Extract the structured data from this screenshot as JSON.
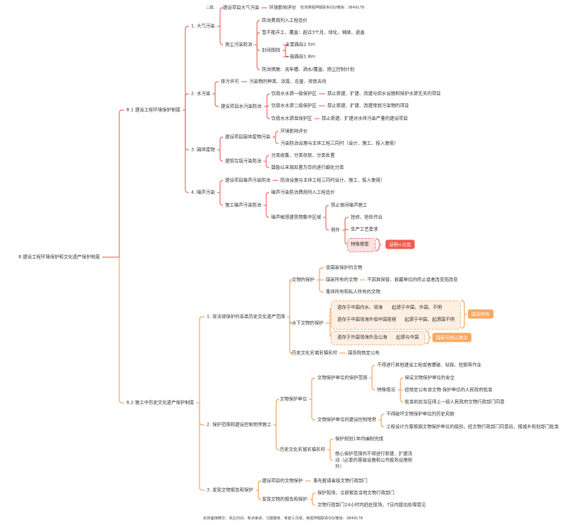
{
  "header": {
    "left": "二建、",
    "right": "检测课程押题联系QQ/微信：3849178"
  },
  "footer": "名师面授精华、央企内训、考点串讲、习题模考、考前三页纸、绝密押题联系QQ/微信：3849178",
  "colors": {
    "env_branch": "#f26b63",
    "heritage_branch": "#f7a35c",
    "badge_red": "#f25b50",
    "badge_orange": "#f7a860"
  },
  "badges": {
    "special_need": "证明+公告",
    "state_owned": "国家所有",
    "identifiable_owner": "国家可辨认物主"
  },
  "map": {
    "root": {
      "text": "8 建设工程环境保护和文化遗产保护制度",
      "children": [
        {
          "text": "8.1 建设工程环境保护制度",
          "children": [
            {
              "text": "1. 大气污染",
              "children": [
                {
                  "text": "建设项目大气污染",
                  "children": [
                    {
                      "text": "环境影响评价"
                    }
                  ]
                },
                {
                  "text": "扬尘污染防治",
                  "children": [
                    {
                      "text": "防治费用列入工程造价"
                    },
                    {
                      "text": "暂不能开工、覆盖：超过3个月，绿化、铺装、遮盖"
                    },
                    {
                      "text": "封闭围挡",
                      "children": [
                        {
                          "text": "主要路段2.5m"
                        },
                        {
                          "text": "一般路段1.8m"
                        }
                      ]
                    },
                    {
                      "text": "防治措施：洗车槽、洒水/覆盖、扬尘控制计划"
                    }
                  ]
                }
              ]
            },
            {
              "text": "2. 水污染",
              "children": [
                {
                  "text": "排污许可",
                  "children": [
                    {
                      "text": "污染物的种类、浓度、总量、排放去向"
                    }
                  ]
                },
                {
                  "text": "建设项目水污染防治",
                  "children": [
                    {
                      "text": "饮用水水源一级保护区",
                      "children": [
                        {
                          "text": "禁止新建、扩建、改建与供水设施和保护水源无关的项目"
                        }
                      ]
                    },
                    {
                      "text": "饮用水水源二级保护区",
                      "children": [
                        {
                          "text": "禁止新建、扩建、改建排放污染物的项目"
                        }
                      ]
                    },
                    {
                      "text": "饮用水水源准保护区",
                      "children": [
                        {
                          "text": "禁止新建、扩建对水体污染严重的建设项目"
                        }
                      ]
                    }
                  ]
                }
              ]
            },
            {
              "text": "3. 固体废物",
              "children": [
                {
                  "text": "建设项目固体废物污染",
                  "children": [
                    {
                      "text": "环境影响评价"
                    },
                    {
                      "text": "污染防治设施与主体工程三同时（设计、施工、投入使用）"
                    }
                  ]
                },
                {
                  "text": "建筑垃圾污染防治",
                  "children": [
                    {
                      "text": "分类收集、分类存放、分类处置"
                    },
                    {
                      "text": "鼓励以末端处置为导向进行细化分类"
                    }
                  ]
                }
              ]
            },
            {
              "text": "4. 噪声污染",
              "children": [
                {
                  "text": "建设项目噪声污染防治",
                  "children": [
                    {
                      "text": "防治设施与主体工程三同时设计、施工、投入使用）"
                    }
                  ]
                },
                {
                  "text": "施工噪声污染防治",
                  "children": [
                    {
                      "text": "噪声污染防治费用列入工程造价"
                    },
                    {
                      "text": "噪声敏感建筑物集中区域",
                      "children": [
                        {
                          "text": "禁止夜间噪声施工"
                        },
                        {
                          "text": "例外",
                          "children": [
                            {
                              "text": "抢修、抢险作业"
                            },
                            {
                              "text": "生产工艺要求"
                            },
                            {
                              "text": "特殊需要"
                            }
                          ]
                        }
                      ]
                    }
                  ]
                }
              ]
            }
          ]
        },
        {
          "text": "8.2 施工中历史文化遗产保护制度",
          "children": [
            {
              "text": "1. 受法律保护的各类历史文化遗产范围",
              "children": [
                {
                  "text": "文物的保护",
                  "children": [
                    {
                      "text": "受国家保护的文物"
                    },
                    {
                      "text": "国家所有的文物",
                      "children": [
                        {
                          "text": "不因其保管、收藏单位的终止或者改变而改变"
                        }
                      ]
                    },
                    {
                      "text": "集体所有和私人所有的文物"
                    }
                  ]
                },
                {
                  "text": "水下文物的保护",
                  "children": [
                    {
                      "text": "遗存于中国内水、领海",
                      "children": [
                        {
                          "text": "起源于中国、外国、不明"
                        }
                      ]
                    },
                    {
                      "text": "遗存于中国领海外但中国管辖",
                      "children": [
                        {
                          "text": "起源于中国、起源国不明"
                        }
                      ]
                    },
                    {
                      "text": "遗存于外国领海外及公海",
                      "children": [
                        {
                          "text": "起源与中国"
                        }
                      ]
                    }
                  ]
                },
                {
                  "text": "历史文化名城名镇名村",
                  "children": [
                    {
                      "text": "国务院核定公布"
                    }
                  ]
                }
              ]
            },
            {
              "text": "2. 保护范围和建设控制地带施工",
              "children": [
                {
                  "text": "文物保护单位",
                  "children": [
                    {
                      "text": "文物保护单位的保护范围",
                      "children": [
                        {
                          "text": "不得进行其他建设工程或者爆破、钻探、挖掘等作业"
                        },
                        {
                          "text": "特殊情况",
                          "children": [
                            {
                              "text": "保证文物保护单位的安全"
                            },
                            {
                              "text": "经核定公布该文物 保护单位的人民政府批准"
                            },
                            {
                              "text": "批准前应当征得上一级人民政府文物行政部门同意"
                            }
                          ]
                        }
                      ]
                    },
                    {
                      "text": "文物保护单位的建设控制地带",
                      "children": [
                        {
                          "text": "不得破坏文物保护单位的历史风貌"
                        },
                        {
                          "text": "工程设计方案根据文物保护单位的级别，经文物行政部门同意后，报城乡规划部门批准"
                        }
                      ]
                    }
                  ]
                },
                {
                  "text": "历史文化名城名镇名村",
                  "children": [
                    {
                      "text": "保护规划1年内编制完成"
                    },
                    {
                      "text": "核心保护范围内不得进行新建、扩建活动（必要的基础设施和公共服务设施例外）"
                    }
                  ]
                }
              ]
            },
            {
              "text": "3. 发现文物报告和保护",
              "children": [
                {
                  "text": "建设项目的文物保护",
                  "children": [
                    {
                      "text": "事先报请省级文物行政部门"
                    }
                  ]
                },
                {
                  "text": "发现文物的报告和保护",
                  "children": [
                    {
                      "text": "保护现场、立即报告当地文物行政部门"
                    },
                    {
                      "text": "文物行政部门24小时内赶赴现场，7日内提出处理意见"
                    }
                  ]
                }
              ]
            }
          ]
        }
      ]
    }
  }
}
